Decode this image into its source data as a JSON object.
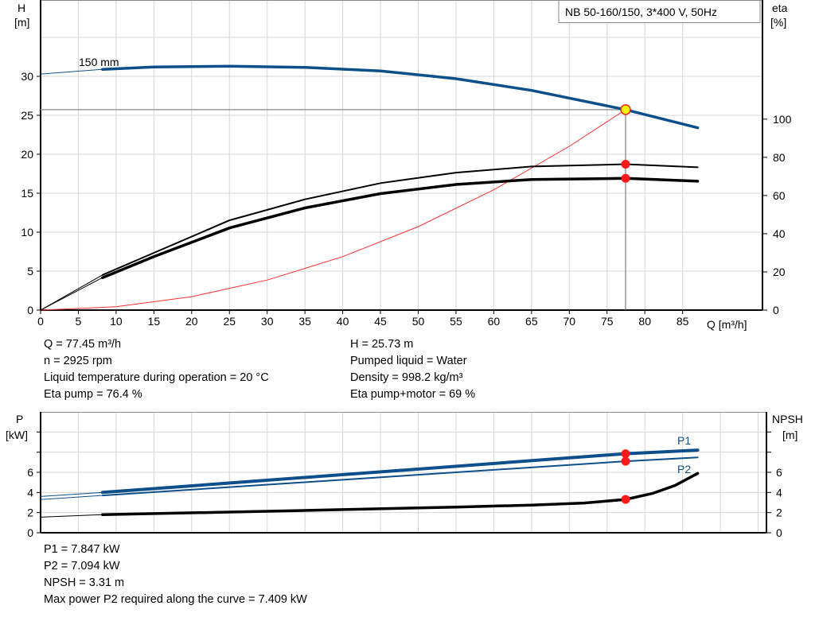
{
  "title": "NB 50-160/150, 3*400 V, 50Hz",
  "chart_data": [
    {
      "type": "line",
      "xlabel": "Q [m³/h]",
      "ylabel_left": [
        "H",
        "[m]"
      ],
      "ylabel_right": [
        "eta",
        "[%]"
      ],
      "xlim": [
        0,
        95.6
      ],
      "ylim_left": [
        0,
        39.8
      ],
      "ylim_right": [
        0,
        162.4
      ],
      "x_ticks": [
        0,
        5,
        10,
        15,
        20,
        25,
        30,
        35,
        40,
        45,
        50,
        55,
        60,
        65,
        70,
        75,
        80,
        85
      ],
      "y_left_ticks": [
        0,
        5,
        10,
        15,
        20,
        25,
        30
      ],
      "y_right_ticks": [
        0,
        20,
        40,
        60,
        80,
        100
      ],
      "grid": true,
      "curve_label": "150 mm",
      "series": [
        {
          "key": "head",
          "axis": "left",
          "color": "#0d4f8b",
          "x": [
            0,
            8.2,
            15,
            25,
            35,
            45,
            55,
            65,
            77.45,
            87
          ],
          "y": [
            30.3,
            30.9,
            31.2,
            31.3,
            31.15,
            30.7,
            29.7,
            28.2,
            25.73,
            23.4
          ]
        },
        {
          "key": "eta-pump",
          "axis": "right",
          "color": "#000000",
          "x": [
            0,
            8.2,
            15,
            25,
            35,
            45,
            55,
            65,
            77.45,
            87
          ],
          "y": [
            0,
            18.4,
            30,
            47,
            58,
            66.5,
            72,
            75.2,
            76.4,
            74.8
          ]
        },
        {
          "key": "eta-pump-motor",
          "axis": "right",
          "color": "#000000",
          "x": [
            0,
            8.2,
            15,
            25,
            35,
            45,
            55,
            65,
            77.45,
            87
          ],
          "y": [
            0,
            17,
            28,
            43,
            53.5,
            61,
            65.8,
            68.4,
            69,
            67.5
          ]
        },
        {
          "key": "system-curve",
          "axis": "left",
          "color": "#ff3030",
          "x": [
            0,
            10,
            20,
            30,
            40,
            50,
            60,
            70,
            77.45
          ],
          "y": [
            0,
            0.43,
            1.72,
            3.86,
            6.86,
            10.72,
            15.44,
            21.02,
            25.73
          ]
        }
      ],
      "operating_point": {
        "Q": 77.45,
        "H": 25.73,
        "eta_pump": 76.4,
        "eta_pump_motor": 69
      }
    },
    {
      "type": "line",
      "ylabel_left": [
        "P",
        "[kW]"
      ],
      "ylabel_right": [
        "NPSH",
        "[m]"
      ],
      "xlim": [
        0,
        96.3
      ],
      "ylim": [
        0,
        12
      ],
      "y_ticks": [
        0,
        2,
        4,
        6,
        8,
        10
      ],
      "y_tick_labels": [
        "0",
        "2",
        "4",
        "6",
        "",
        ""
      ],
      "grid": true,
      "series": [
        {
          "key": "P1",
          "name": "P1",
          "color": "#0d4f8b",
          "x": [
            0,
            8.2,
            77.45,
            87
          ],
          "y": [
            3.6,
            4.0,
            7.847,
            8.2
          ]
        },
        {
          "key": "P2",
          "name": "P2",
          "color": "#0d4f8b",
          "x": [
            0,
            8.2,
            77.45,
            87
          ],
          "y": [
            3.3,
            3.7,
            7.094,
            7.48
          ]
        },
        {
          "key": "NPSH",
          "color": "#000000",
          "x": [
            0,
            8.2,
            25,
            40,
            55,
            65,
            72,
            77.45,
            81,
            84,
            87
          ],
          "y": [
            1.55,
            1.8,
            2.05,
            2.3,
            2.55,
            2.75,
            2.95,
            3.31,
            3.9,
            4.7,
            5.9
          ]
        }
      ]
    }
  ],
  "info_top_left": [
    "Q = 77.45 m³/h",
    "n = 2925 rpm",
    "Liquid temperature during operation = 20 °C",
    "Eta pump = 76.4 %"
  ],
  "info_top_right": [
    "H = 25.73 m",
    "Pumped liquid = Water",
    "Density = 998.2 kg/m³",
    "Eta pump+motor = 69 %"
  ],
  "info_bottom": [
    "P1 = 7.847 kW",
    "P2 = 7.094 kW",
    "NPSH = 3.31 m",
    "Max power P2 required along the curve = 7.409 kW"
  ]
}
